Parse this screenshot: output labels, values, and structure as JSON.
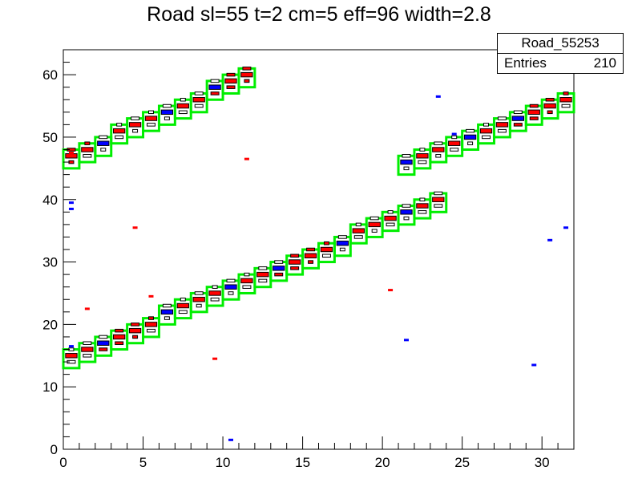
{
  "chart_data": {
    "type": "heatmap",
    "title": "Road sl=55 t=2 cm=5 eff=96 width=2.8",
    "xlabel": "",
    "ylabel": "",
    "xlim": [
      0,
      32
    ],
    "ylim": [
      0,
      64
    ],
    "x_ticks": [
      "0",
      "5",
      "10",
      "15",
      "20",
      "25",
      "30"
    ],
    "y_ticks": [
      "0",
      "10",
      "20",
      "30",
      "40",
      "50",
      "60"
    ],
    "grid": false,
    "colors": {
      "road_box": "#00ee00",
      "cell_red": "#ff0000",
      "cell_blue": "#0000ff",
      "cell_outline": "#000000"
    },
    "road_bands": [
      {
        "x_start": 0,
        "x_end": 12,
        "y_start": 46,
        "y_end": 59,
        "rows": 3
      },
      {
        "x_start": 0,
        "x_end": 24,
        "y_start": 14,
        "y_end": 39,
        "rows": 3
      },
      {
        "x_start": 21,
        "x_end": 32,
        "y_start": 45,
        "y_end": 55,
        "rows": 3
      }
    ],
    "stray_hits": [
      {
        "x": 0.5,
        "y": 47.5,
        "color": "red"
      },
      {
        "x": 0.5,
        "y": 39.5,
        "color": "blue"
      },
      {
        "x": 0.5,
        "y": 38.5,
        "color": "blue"
      },
      {
        "x": 0.5,
        "y": 16.5,
        "color": "blue"
      },
      {
        "x": 1.5,
        "y": 22.5,
        "color": "red"
      },
      {
        "x": 4.5,
        "y": 35.5,
        "color": "red"
      },
      {
        "x": 5.5,
        "y": 24.5,
        "color": "red"
      },
      {
        "x": 9.5,
        "y": 14.5,
        "color": "red"
      },
      {
        "x": 10.5,
        "y": 1.5,
        "color": "blue"
      },
      {
        "x": 11.5,
        "y": 46.5,
        "color": "red"
      },
      {
        "x": 20.5,
        "y": 25.5,
        "color": "red"
      },
      {
        "x": 21.5,
        "y": 17.5,
        "color": "blue"
      },
      {
        "x": 23.5,
        "y": 56.5,
        "color": "blue"
      },
      {
        "x": 24.5,
        "y": 50.5,
        "color": "blue"
      },
      {
        "x": 29.5,
        "y": 13.5,
        "color": "blue"
      },
      {
        "x": 30.5,
        "y": 33.5,
        "color": "blue"
      },
      {
        "x": 31.5,
        "y": 35.5,
        "color": "blue"
      }
    ]
  },
  "stats": {
    "name": "Road_55253",
    "entries_label": "Entries",
    "entries_value": "210"
  }
}
